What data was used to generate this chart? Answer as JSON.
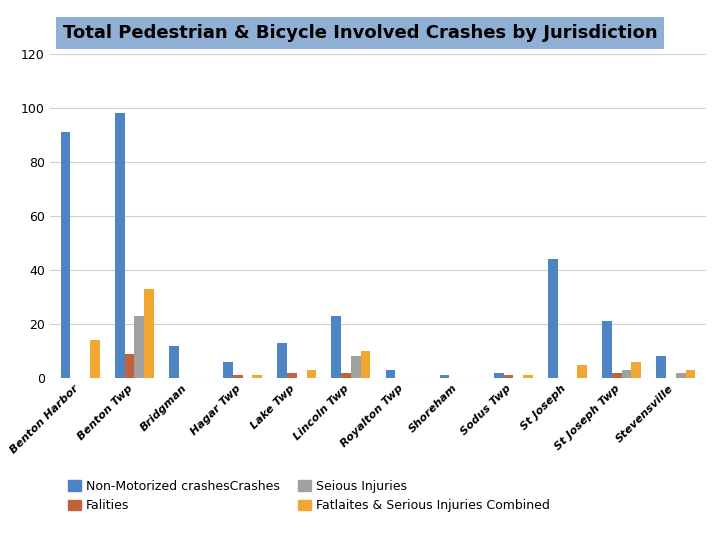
{
  "title": "Total Pedestrian & Bicycle Involved Crashes by Jurisdiction",
  "title_bg_color": "#8fafd4",
  "categories": [
    "Benton Harbor",
    "Benton Twp",
    "Bridgman",
    "Hagar Twp",
    "Lake Twp",
    "Lincoln Twp",
    "Royalton Twp",
    "Shoreham",
    "Sodus Twp",
    "St Joseph",
    "St Joseph Twp",
    "Stevensville"
  ],
  "series": {
    "Non-Motorized crashesCrashes": [
      91,
      98,
      12,
      6,
      13,
      23,
      3,
      1,
      2,
      44,
      21,
      8
    ],
    "Falities": [
      0,
      9,
      0,
      1,
      2,
      2,
      0,
      0,
      1,
      0,
      2,
      0
    ],
    "Seious Injuries": [
      0,
      23,
      0,
      0,
      0,
      8,
      0,
      0,
      0,
      0,
      3,
      2
    ],
    "Fatlaites & Serious Injuries Combined": [
      14,
      33,
      0,
      1,
      3,
      10,
      0,
      0,
      1,
      5,
      6,
      3
    ]
  },
  "colors": {
    "Non-Motorized crashesCrashes": "#4f84c4",
    "Falities": "#c0623c",
    "Seious Injuries": "#a0a0a0",
    "Fatlaites & Serious Injuries Combined": "#f0a830"
  },
  "ylim": [
    0,
    120
  ],
  "yticks": [
    0,
    20,
    40,
    60,
    80,
    100,
    120
  ],
  "bar_width": 0.18,
  "figsize": [
    7.2,
    5.4
  ],
  "dpi": 100,
  "bg_color": "#ffffff",
  "grid_color": "#d0d0d0"
}
